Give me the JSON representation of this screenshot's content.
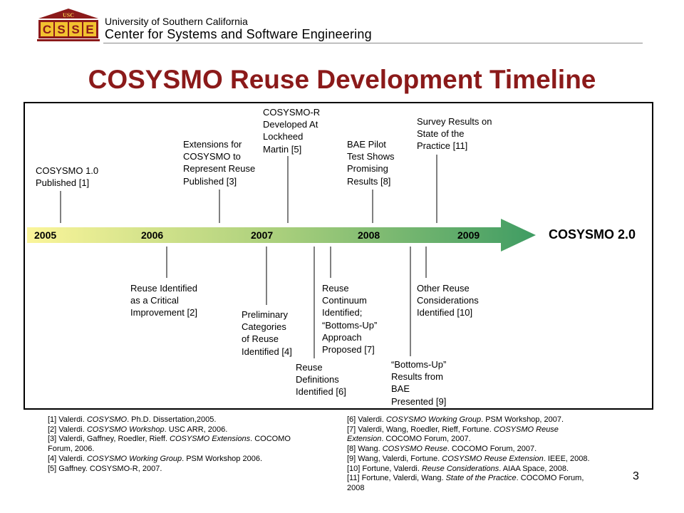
{
  "header": {
    "logo_top": "USC",
    "logo_letters": [
      "C",
      "S",
      "S",
      "E"
    ],
    "org_line1": "University of Southern California",
    "org_line2": "Center for Systems and Software Engineering"
  },
  "title": "COSYSMO Reuse Development Timeline",
  "timeline": {
    "years": [
      "2005",
      "2006",
      "2007",
      "2008",
      "2009"
    ],
    "end_label": "COSYSMO 2.0",
    "colors": {
      "start": "#fbf59a",
      "middle": "#a9cf7c",
      "end": "#3f9c63"
    },
    "events_above": [
      {
        "lines": [
          "COSYSMO 1.0",
          "Published [1]"
        ]
      },
      {
        "lines": [
          "Extensions for",
          "COSYSMO to",
          "Represent Reuse",
          "Published [3]"
        ]
      },
      {
        "lines": [
          "COSYSMO-R",
          "Developed At",
          "Lockheed",
          "Martin [5]"
        ]
      },
      {
        "lines": [
          "BAE Pilot",
          "Test Shows",
          "Promising",
          "Results [8]"
        ]
      },
      {
        "lines": [
          "Survey Results on",
          "State of the",
          "Practice [11]"
        ]
      }
    ],
    "events_below": [
      {
        "lines": [
          "Reuse Identified",
          "as a Critical",
          "Improvement [2]"
        ]
      },
      {
        "lines": [
          "Preliminary",
          "Categories",
          "of Reuse",
          "Identified [4]"
        ]
      },
      {
        "lines": [
          "Reuse",
          "Definitions",
          "Identified [6]"
        ]
      },
      {
        "lines": [
          "Reuse",
          "Continuum",
          "Identified;",
          "“Bottoms-Up”",
          "Approach",
          "Proposed [7]"
        ]
      },
      {
        "lines": [
          "“Bottoms-Up”",
          "Results from",
          "BAE",
          "Presented [9]"
        ]
      },
      {
        "lines": [
          "Other Reuse",
          "Considerations",
          "Identified [10]"
        ]
      }
    ]
  },
  "references_left": [
    {
      "before": "[1] Valerdi. ",
      "italic": "COSYSMO",
      "after": ". Ph.D. Dissertation,2005."
    },
    {
      "before": "[2] Valerdi. ",
      "italic": "COSYSMO Workshop",
      "after": ". USC ARR, 2006."
    },
    {
      "before": "[3] Valerdi, Gaffney, Roedler, Rieff. ",
      "italic": "COSYSMO Extensions",
      "after": ". COCOMO"
    },
    {
      "before": "Forum, 2006.",
      "italic": "",
      "after": ""
    },
    {
      "before": "[4] Valerdi. ",
      "italic": "COSYSMO Working Group",
      "after": ". PSM Workshop 2006."
    },
    {
      "before": "[5] Gaffney. COSYSMO-R, 2007.",
      "italic": "",
      "after": ""
    }
  ],
  "references_right": [
    {
      "before": "[6] Valerdi. ",
      "italic": "COSYSMO Working Group",
      "after": ". PSM Workshop, 2007."
    },
    {
      "before": "[7] Valerdi, Wang, Roedler, Rieff, Fortune. ",
      "italic": "COSYSMO Reuse",
      "after": ""
    },
    {
      "before": "",
      "italic": "Extension",
      "after": ". COCOMO Forum, 2007."
    },
    {
      "before": "[8] Wang. ",
      "italic": "COSYSMO Reuse",
      "after": ". COCOMO Forum, 2007."
    },
    {
      "before": "[9] Wang, Valerdi, Fortune. ",
      "italic": "COSYSMO Reuse Extension",
      "after": ". IEEE, 2008."
    },
    {
      "before": "[10] Fortune, Valerdi. ",
      "italic": "Reuse Considerations",
      "after": ". AIAA Space, 2008."
    },
    {
      "before": "[11] Fortune, Valerdi, Wang. ",
      "italic": "State of the Practice",
      "after": ". COCOMO Forum,"
    },
    {
      "before": "2008",
      "italic": "",
      "after": ""
    }
  ],
  "page_number": "3"
}
